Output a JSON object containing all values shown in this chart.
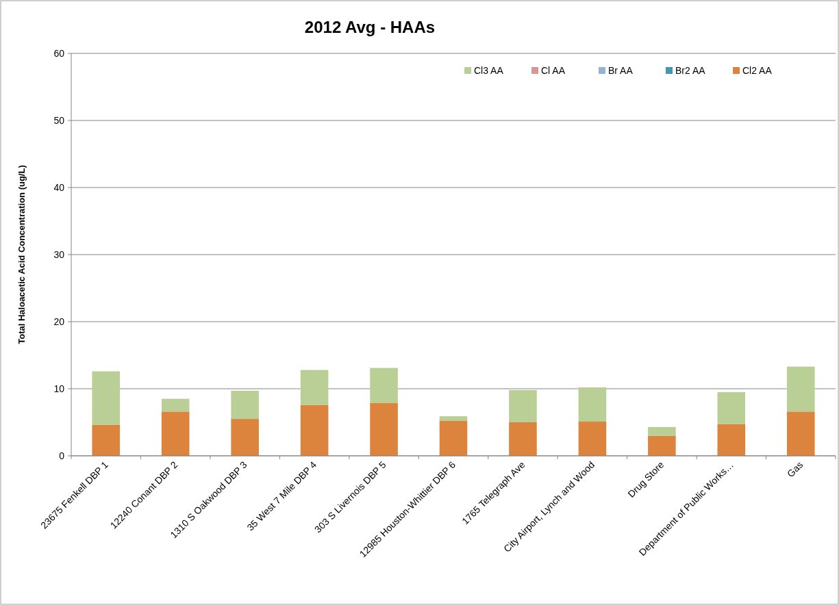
{
  "chart_data": {
    "type": "bar",
    "title": "2012 Avg - HAAs",
    "ylabel": "Total Haloacetic Acid Concentration (ug/L)",
    "categories": [
      "23675 Fenkell DBP 1",
      "12240 Conant DBP 2",
      "1310 S Oakwood DBP 3",
      "35 West 7 Mile DBP 4",
      "303 S Livernois DBP 5",
      "12985 Houston-Whittier DBP 6",
      "1765 Telegraph Ave",
      "City Airport, Lynch and Wood",
      "Drug Store",
      "Department of Public Works…",
      "Gas"
    ],
    "series": [
      {
        "name": "Cl2 AA",
        "color": "#dc843d",
        "values": [
          4.6,
          6.6,
          5.5,
          7.6,
          7.9,
          5.2,
          5.0,
          5.1,
          3.0,
          4.7,
          6.6
        ]
      },
      {
        "name": "Br2 AA",
        "color": "#4198af",
        "values": [
          0,
          0,
          0,
          0,
          0,
          0,
          0,
          0,
          0,
          0,
          0
        ]
      },
      {
        "name": "Br AA",
        "color": "#95b3d7",
        "values": [
          0,
          0,
          0,
          0,
          0,
          0,
          0,
          0,
          0,
          0,
          0
        ]
      },
      {
        "name": "Cl AA",
        "color": "#d99694",
        "values": [
          0,
          0,
          0,
          0,
          0,
          0,
          0,
          0,
          0,
          0,
          0
        ]
      },
      {
        "name": "Cl3 AA",
        "color": "#b9cf96",
        "values": [
          8.0,
          1.9,
          4.2,
          5.2,
          5.2,
          0.7,
          4.8,
          5.1,
          1.3,
          4.8,
          6.7
        ]
      }
    ],
    "stacked": true,
    "ylim": [
      0,
      60
    ],
    "yticks": [
      0,
      10,
      20,
      30,
      40,
      50,
      60
    ],
    "grid": "y",
    "legend": "top right"
  }
}
